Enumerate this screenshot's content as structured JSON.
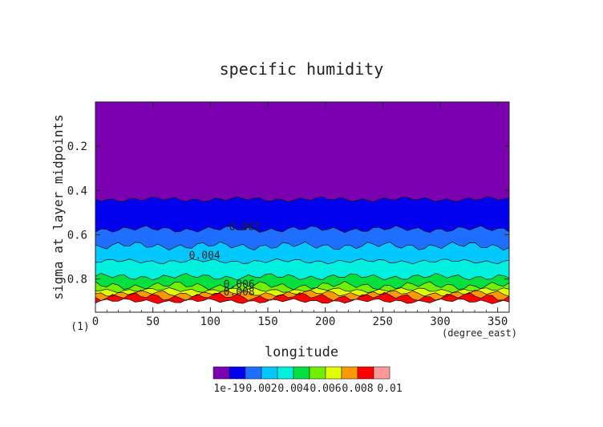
{
  "chart_data": {
    "type": "contour",
    "title": "specific humidity",
    "xlabel": "longitude",
    "ylabel": "sigma at layer midpoints",
    "x_unit": "(degree_east)",
    "y_unit": "(1)",
    "xlim": [
      0,
      360
    ],
    "ylim": [
      0.0,
      0.95
    ],
    "y_inverted": true,
    "x_ticks": [
      0,
      50,
      100,
      150,
      200,
      250,
      300,
      350
    ],
    "y_ticks": [
      0.2,
      0.4,
      0.6,
      0.8
    ],
    "x_tick_labels": [
      "0",
      "50",
      "100",
      "150",
      "200",
      "250",
      "300",
      "350"
    ],
    "y_tick_labels": [
      "0.2",
      "0.4",
      "0.6",
      "0.8"
    ],
    "contour_levels": [
      0,
      0.001,
      0.002,
      0.003,
      0.004,
      0.005,
      0.006,
      0.007,
      0.008,
      0.009,
      0.01
    ],
    "contour_labels": [
      {
        "text": "0.002",
        "x": 130,
        "sigma": 0.565
      },
      {
        "text": "0.004",
        "x": 95,
        "sigma": 0.695
      },
      {
        "text": "0.006",
        "x": 125,
        "sigma": 0.825
      },
      {
        "text": "0.008",
        "x": 125,
        "sigma": 0.86
      }
    ],
    "level_boundaries_sigma": [
      {
        "level": 0.001,
        "sigma": 0.44
      },
      {
        "level": 0.002,
        "sigma": 0.575
      },
      {
        "level": 0.003,
        "sigma": 0.65
      },
      {
        "level": 0.004,
        "sigma": 0.72
      },
      {
        "level": 0.005,
        "sigma": 0.79
      },
      {
        "level": 0.006,
        "sigma": 0.83
      },
      {
        "level": 0.007,
        "sigma": 0.85
      },
      {
        "level": 0.008,
        "sigma": 0.865
      },
      {
        "level": 0.009,
        "sigma": 0.88
      },
      {
        "level": 0.01,
        "sigma": 0.9
      }
    ],
    "colorbar": {
      "colors": [
        "#7a00b0",
        "#0000ee",
        "#1e6eff",
        "#00c8ff",
        "#00f0e0",
        "#00e040",
        "#70f000",
        "#e0ff00",
        "#ff9900",
        "#ff0000",
        "#ff9999"
      ],
      "tick_labels": [
        "1e-19",
        "0.002",
        "0.004",
        "0.006",
        "0.008",
        "0.01"
      ]
    }
  }
}
